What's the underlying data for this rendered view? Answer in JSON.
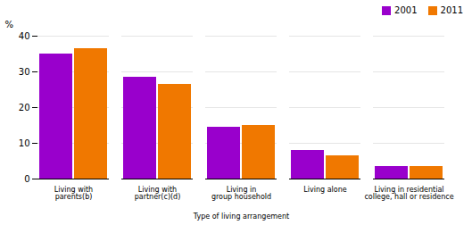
{
  "chart_data": {
    "type": "bar",
    "categories": [
      "Living with\nparents(b)",
      "Living with\npartner(c)(d)",
      "Living in\ngroup household",
      "Living alone",
      "Living in residential\ncollege, hall or residence"
    ],
    "series": [
      {
        "name": "2001",
        "color": "#9900cc",
        "values": [
          35.0,
          28.5,
          14.5,
          8.0,
          3.5
        ]
      },
      {
        "name": "2011",
        "color": "#f07800",
        "values": [
          36.5,
          26.5,
          15.0,
          6.5,
          3.5
        ]
      }
    ],
    "xlabel": "Type of living arrangement",
    "ylabel": "%",
    "ylim": [
      0,
      40
    ],
    "yticks": [
      0,
      10,
      20,
      30,
      40
    ],
    "grid": true,
    "legend": "upper right"
  }
}
